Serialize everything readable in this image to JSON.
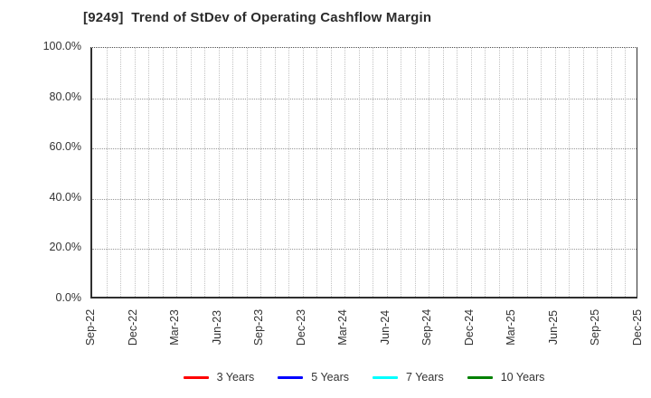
{
  "page": {
    "background": "#ffffff"
  },
  "chart_data": {
    "type": "line",
    "title": "[9249]  Trend of StDev of Operating Cashflow Margin",
    "xlabel": "",
    "ylabel": "",
    "ylim": [
      0,
      100
    ],
    "y_unit": "%",
    "grid": true,
    "grid_style": "dotted",
    "minor_x_gridlines_per_label_interval": 3,
    "x_tick_labels": [
      "Sep-22",
      "Dec-22",
      "Mar-23",
      "Jun-23",
      "Sep-23",
      "Dec-23",
      "Mar-24",
      "Jun-24",
      "Sep-24",
      "Dec-24",
      "Mar-25",
      "Jun-25",
      "Sep-25",
      "Dec-25"
    ],
    "x_tick_rotation_deg": 90,
    "y_tick_labels": [
      "100.0%",
      "80.0%",
      "60.0%",
      "40.0%",
      "20.0%",
      "0.0%"
    ],
    "y_tick_values": [
      100,
      80,
      60,
      40,
      20,
      0
    ],
    "legend_position": "bottom",
    "series": [
      {
        "name": "3 Years",
        "color": "#ff0000",
        "x": [],
        "values": []
      },
      {
        "name": "5 Years",
        "color": "#0000ff",
        "x": [],
        "values": []
      },
      {
        "name": "7 Years",
        "color": "#00ffff",
        "x": [],
        "values": []
      },
      {
        "name": "10 Years",
        "color": "#008000",
        "x": [],
        "values": []
      }
    ]
  }
}
